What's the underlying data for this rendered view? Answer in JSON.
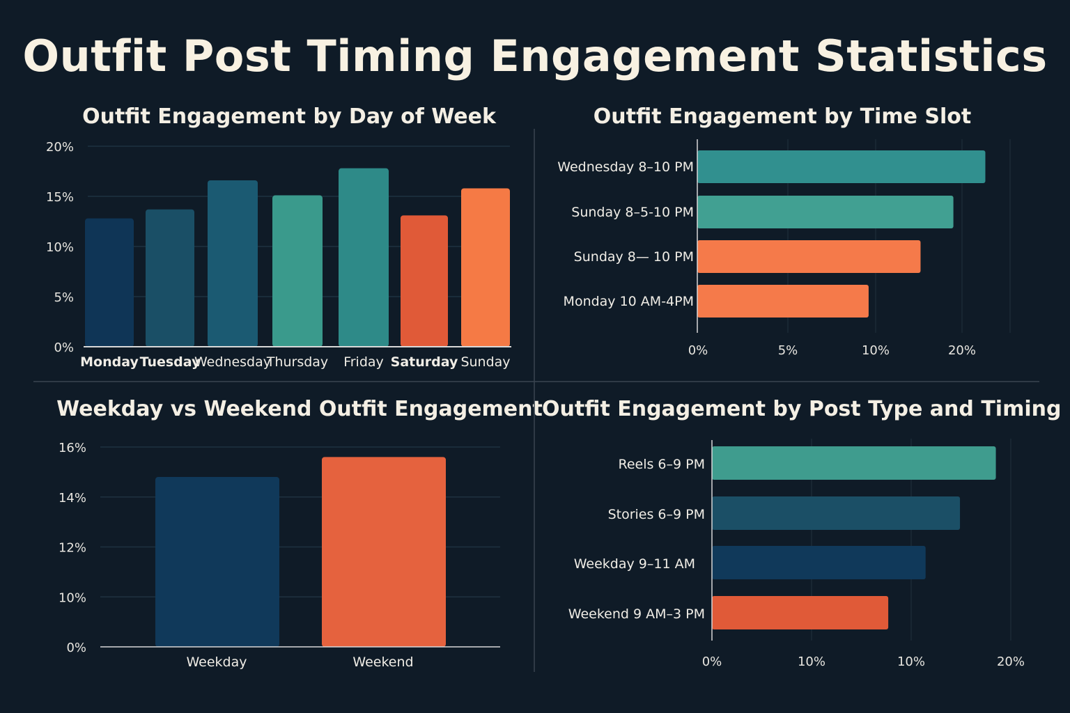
{
  "title": "Outfit Post Timing Engagement Statistics",
  "chart_data": [
    {
      "id": "day",
      "type": "bar",
      "title": "Outfit Engagement by Day of Week",
      "categories": [
        "Monday",
        "Tuesday",
        "Wednesday",
        "Thursday",
        "Friday",
        "Saturday",
        "Sunday"
      ],
      "values": [
        12.8,
        13.7,
        16.6,
        15.1,
        17.8,
        13.1,
        15.8
      ],
      "colors": [
        "#0f3556",
        "#1a4f66",
        "#1b5a72",
        "#3a9a8c",
        "#2e8a88",
        "#e05a38",
        "#f57a45"
      ],
      "yticks": [
        0,
        5,
        10,
        15,
        20
      ],
      "ytick_labels": [
        "0%",
        "5%",
        "10%",
        "15%",
        "20%"
      ],
      "ylim": [
        0,
        20
      ],
      "grid": true
    },
    {
      "id": "slot",
      "type": "bar",
      "orientation": "horizontal",
      "title": "Outfit Engagement by Time Slot",
      "categories": [
        "Wednesday 8–10 PM",
        "Sunday 8–5-10 PM",
        "Sunday 8— 10 PM",
        "Monday 10 AM-4PM"
      ],
      "values": [
        22.7,
        19.0,
        15.2,
        9.6
      ],
      "colors": [
        "#31908f",
        "#41a092",
        "#f57a4a",
        "#f57a4a"
      ],
      "xticks": [
        0,
        5,
        10,
        20
      ],
      "xtick_labels": [
        "0%",
        "5%",
        "10%",
        "20%"
      ],
      "grid": true
    },
    {
      "id": "week",
      "type": "bar",
      "title": "Weekday vs Weekend Outfit Engagement",
      "categories": [
        "Weekday",
        "Weekend"
      ],
      "values": [
        14.8,
        15.6
      ],
      "colors": [
        "#10395a",
        "#e5623e"
      ],
      "yticks": [
        0,
        10,
        12,
        14,
        16
      ],
      "ytick_labels": [
        "0%",
        "10%",
        "12%",
        "14%",
        "16%"
      ],
      "grid": true
    },
    {
      "id": "type",
      "type": "bar",
      "orientation": "horizontal",
      "title": "Outfit Engagement by Post Type and Timing",
      "categories": [
        "Reels 6–9 PM",
        "Stories 6–9 PM",
        "Weekday 9–11 AM",
        "Weekend 9 AM–3 PM"
      ],
      "values": [
        19.0,
        16.6,
        14.3,
        11.8
      ],
      "colors": [
        "#3f9c8e",
        "#1b4f66",
        "#10395a",
        "#e05a38"
      ],
      "xlim": [
        0,
        20
      ],
      "xtick_labels": [
        "0%",
        "10%",
        "10%",
        "20%"
      ],
      "grid": true
    }
  ]
}
